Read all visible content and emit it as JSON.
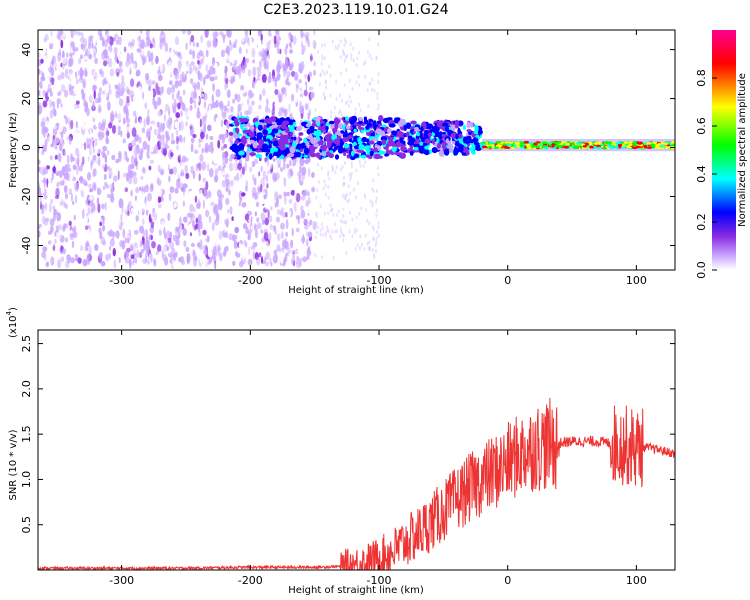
{
  "title": "C2E3.2023.119.10.01.G24",
  "chart_data": [
    {
      "type": "heatmap",
      "xlabel": "Height of straight line (km)",
      "ylabel": "Frequency (Hz)",
      "xlim": [
        -365,
        130
      ],
      "ylim": [
        -50,
        48
      ],
      "xticks": [
        -300,
        -200,
        -100,
        0,
        100
      ],
      "yticks": [
        -40,
        -20,
        0,
        20,
        40
      ],
      "colorbar": {
        "label": "Normalized spectral amplitude",
        "range": [
          0,
          1
        ],
        "ticks": [
          "0.0",
          "0.2",
          "0.4",
          "0.6",
          "0.8"
        ],
        "tick_values": [
          0,
          0.2,
          0.4,
          0.6,
          0.8
        ]
      },
      "colors": [
        "#ffffff",
        "#d9b8ff",
        "#8a2be2",
        "#0000ff",
        "#00ffff",
        "#00ff00",
        "#ffff00",
        "#ff0000",
        "#ff00a0"
      ],
      "description_regions": [
        {
          "x_range": [
            -365,
            -150
          ],
          "f_spread": 48,
          "amplitude": [
            0.02,
            0.15
          ]
        },
        {
          "x_range": [
            -215,
            -20
          ],
          "f_spread": 8,
          "amplitude": [
            0.1,
            0.45
          ]
        },
        {
          "x_range": [
            -20,
            130
          ],
          "f_spread": 2,
          "amplitude": [
            0.4,
            0.95
          ]
        }
      ]
    },
    {
      "type": "line",
      "xlabel": "Height of straight line (km)",
      "ylabel": "SNR (10 * v/v)",
      "y_scale_label": "(x10",
      "y_scale_exponent": "4",
      "xlim": [
        -365,
        130
      ],
      "ylim": [
        0,
        2.65
      ],
      "xticks": [
        -300,
        -200,
        -100,
        0,
        100
      ],
      "yticks": [
        0.5,
        1.0,
        1.5,
        2.0,
        2.5
      ],
      "ytick_labels": [
        "0.5",
        "1.0",
        "1.5",
        "2.0",
        "2.5"
      ],
      "series": [
        {
          "color": "#ee3333",
          "x": [
            -365,
            -300,
            -250,
            -200,
            -150,
            -130,
            -120,
            -110,
            -100,
            -90,
            -80,
            -70,
            -60,
            -50,
            -40,
            -30,
            -20,
            -10,
            0,
            10,
            20,
            30,
            40,
            50,
            60,
            70,
            80,
            90,
            100,
            110,
            120,
            130
          ],
          "y": [
            0.02,
            0.02,
            0.02,
            0.03,
            0.03,
            0.04,
            0.05,
            0.08,
            0.12,
            0.2,
            0.3,
            0.4,
            0.52,
            0.65,
            0.78,
            0.9,
            1.0,
            1.08,
            1.18,
            1.28,
            1.35,
            1.38,
            1.4,
            1.42,
            1.42,
            1.42,
            1.4,
            1.38,
            1.35,
            1.35,
            1.32,
            1.28
          ]
        }
      ]
    }
  ]
}
